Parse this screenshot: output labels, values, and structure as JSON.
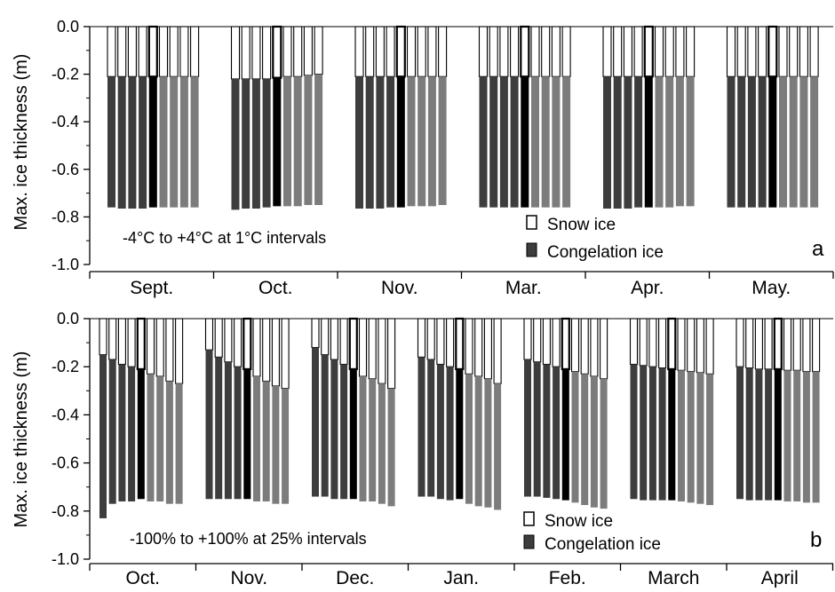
{
  "colors": {
    "snow_fill": "#ffffff",
    "congelation_dark": "#3d3d3d",
    "congelation_base": "#000000",
    "congelation_light": "#7c7c7c",
    "outline": "#000000"
  },
  "chart_data": [
    {
      "type": "bar",
      "subtype": "stacked-grouped",
      "panel_label": "a",
      "ylabel": "Max. ice thickness (m)",
      "ylim": [
        -1.0,
        0.0
      ],
      "yticks": [
        "0.0",
        "-0.2",
        "-0.4",
        "-0.6",
        "-0.8",
        "-1.0"
      ],
      "annotation": "-4°C to +4°C at 1°C intervals",
      "legend": {
        "snow": "Snow ice",
        "congelation": "Congelation ice",
        "placement": "bottom-right"
      },
      "categories": [
        "Sept.",
        "Oct.",
        "Nov.",
        "Mar.",
        "Apr.",
        "May."
      ],
      "series": [
        {
          "name": "Snow ice",
          "values": [
            [
              -0.21,
              -0.21,
              -0.21,
              -0.21,
              -0.21,
              -0.21,
              -0.21,
              -0.21,
              -0.21
            ],
            [
              -0.22,
              -0.22,
              -0.22,
              -0.22,
              -0.215,
              -0.21,
              -0.21,
              -0.205,
              -0.2
            ],
            [
              -0.21,
              -0.21,
              -0.21,
              -0.21,
              -0.21,
              -0.21,
              -0.21,
              -0.21,
              -0.21
            ],
            [
              -0.21,
              -0.21,
              -0.21,
              -0.21,
              -0.21,
              -0.21,
              -0.21,
              -0.21,
              -0.21
            ],
            [
              -0.21,
              -0.21,
              -0.21,
              -0.21,
              -0.21,
              -0.21,
              -0.21,
              -0.21,
              -0.21
            ],
            [
              -0.21,
              -0.21,
              -0.21,
              -0.21,
              -0.21,
              -0.21,
              -0.21,
              -0.21,
              -0.21
            ]
          ]
        },
        {
          "name": "Congelation ice",
          "values": [
            [
              -0.55,
              -0.555,
              -0.555,
              -0.555,
              -0.55,
              -0.55,
              -0.55,
              -0.55,
              -0.55
            ],
            [
              -0.55,
              -0.545,
              -0.545,
              -0.54,
              -0.54,
              -0.545,
              -0.545,
              -0.545,
              -0.55
            ],
            [
              -0.555,
              -0.555,
              -0.555,
              -0.55,
              -0.55,
              -0.545,
              -0.545,
              -0.545,
              -0.54
            ],
            [
              -0.55,
              -0.55,
              -0.55,
              -0.55,
              -0.55,
              -0.55,
              -0.55,
              -0.55,
              -0.55
            ],
            [
              -0.555,
              -0.555,
              -0.555,
              -0.55,
              -0.55,
              -0.55,
              -0.55,
              -0.545,
              -0.545
            ],
            [
              -0.55,
              -0.55,
              -0.55,
              -0.55,
              -0.55,
              -0.55,
              -0.55,
              -0.55,
              -0.55
            ]
          ]
        }
      ]
    },
    {
      "type": "bar",
      "subtype": "stacked-grouped",
      "panel_label": "b",
      "ylabel": "Max. ice thickness (m)",
      "ylim": [
        -1.0,
        0.0
      ],
      "yticks": [
        "0.0",
        "-0.2",
        "-0.4",
        "-0.6",
        "-0.8",
        "-1.0"
      ],
      "annotation": "-100% to +100% at 25% intervals",
      "legend": {
        "snow": "Snow ice",
        "congelation": "Congelation ice",
        "placement": "bottom-right"
      },
      "categories": [
        "Oct.",
        "Nov.",
        "Dec.",
        "Jan.",
        "Feb.",
        "March",
        "April"
      ],
      "series": [
        {
          "name": "Snow ice",
          "values": [
            [
              -0.15,
              -0.17,
              -0.19,
              -0.2,
              -0.21,
              -0.23,
              -0.24,
              -0.26,
              -0.27
            ],
            [
              -0.13,
              -0.16,
              -0.18,
              -0.2,
              -0.21,
              -0.24,
              -0.26,
              -0.28,
              -0.29
            ],
            [
              -0.12,
              -0.15,
              -0.17,
              -0.19,
              -0.21,
              -0.24,
              -0.25,
              -0.27,
              -0.29
            ],
            [
              -0.16,
              -0.17,
              -0.19,
              -0.2,
              -0.21,
              -0.23,
              -0.24,
              -0.25,
              -0.27
            ],
            [
              -0.17,
              -0.18,
              -0.19,
              -0.2,
              -0.21,
              -0.22,
              -0.23,
              -0.24,
              -0.25
            ],
            [
              -0.19,
              -0.195,
              -0.2,
              -0.205,
              -0.21,
              -0.215,
              -0.22,
              -0.225,
              -0.23
            ],
            [
              -0.2,
              -0.205,
              -0.21,
              -0.21,
              -0.21,
              -0.215,
              -0.215,
              -0.22,
              -0.22
            ]
          ]
        },
        {
          "name": "Congelation ice",
          "values": [
            [
              -0.68,
              -0.6,
              -0.57,
              -0.56,
              -0.54,
              -0.53,
              -0.52,
              -0.51,
              -0.5
            ],
            [
              -0.62,
              -0.59,
              -0.57,
              -0.55,
              -0.54,
              -0.52,
              -0.5,
              -0.49,
              -0.48
            ],
            [
              -0.62,
              -0.59,
              -0.58,
              -0.56,
              -0.54,
              -0.52,
              -0.51,
              -0.5,
              -0.49
            ],
            [
              -0.58,
              -0.57,
              -0.56,
              -0.555,
              -0.54,
              -0.54,
              -0.54,
              -0.535,
              -0.525
            ],
            [
              -0.57,
              -0.56,
              -0.555,
              -0.55,
              -0.545,
              -0.545,
              -0.545,
              -0.545,
              -0.54
            ],
            [
              -0.56,
              -0.56,
              -0.555,
              -0.55,
              -0.545,
              -0.545,
              -0.545,
              -0.545,
              -0.545
            ],
            [
              -0.55,
              -0.55,
              -0.545,
              -0.545,
              -0.545,
              -0.545,
              -0.545,
              -0.545,
              -0.545
            ]
          ]
        }
      ]
    }
  ]
}
